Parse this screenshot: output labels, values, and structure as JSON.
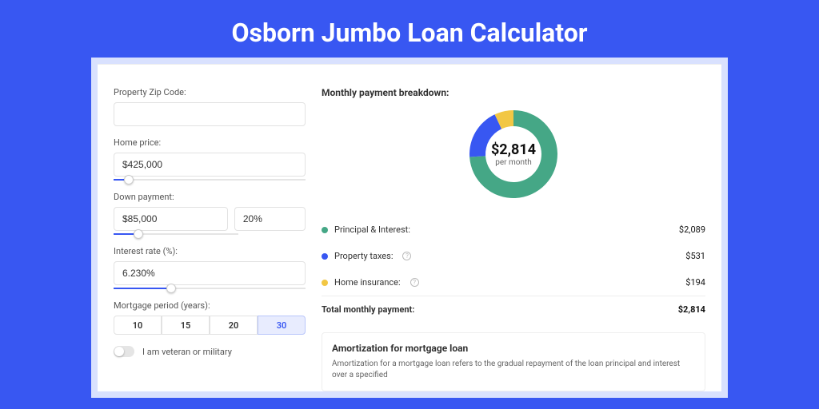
{
  "title": "Osborn Jumbo Loan Calculator",
  "form": {
    "zip_label": "Property Zip Code:",
    "zip_value": "",
    "home_price_label": "Home price:",
    "home_price_value": "$425,000",
    "home_price_slider_pct": 8,
    "down_payment_label": "Down payment:",
    "down_payment_value": "$85,000",
    "down_payment_pct_value": "20%",
    "down_payment_slider_pct": 20,
    "interest_label": "Interest rate (%):",
    "interest_value": "6.230%",
    "interest_slider_pct": 30,
    "period_label": "Mortgage period (years):",
    "periods": [
      "10",
      "15",
      "20",
      "30"
    ],
    "period_active_index": 3,
    "veteran_label": "I am veteran or military",
    "veteran_on": false
  },
  "breakdown": {
    "title": "Monthly payment breakdown:",
    "center_amount": "$2,814",
    "center_sub": "per month",
    "items": [
      {
        "label": "Principal & Interest:",
        "value": "$2,089",
        "color": "#45a786",
        "has_help": false
      },
      {
        "label": "Property taxes:",
        "value": "$531",
        "color": "#3857f2",
        "has_help": true
      },
      {
        "label": "Home insurance:",
        "value": "$194",
        "color": "#f2c744",
        "has_help": true
      }
    ],
    "total_label": "Total monthly payment:",
    "total_value": "$2,814"
  },
  "donut": {
    "size": 120,
    "thickness": 20,
    "background": "#f0f0f0",
    "segments": [
      {
        "color": "#45a786",
        "pct": 74
      },
      {
        "color": "#3857f2",
        "pct": 19
      },
      {
        "color": "#f2c744",
        "pct": 7
      }
    ]
  },
  "amortization": {
    "title": "Amortization for mortgage loan",
    "text": "Amortization for a mortgage loan refers to the gradual repayment of the loan principal and interest over a specified"
  }
}
